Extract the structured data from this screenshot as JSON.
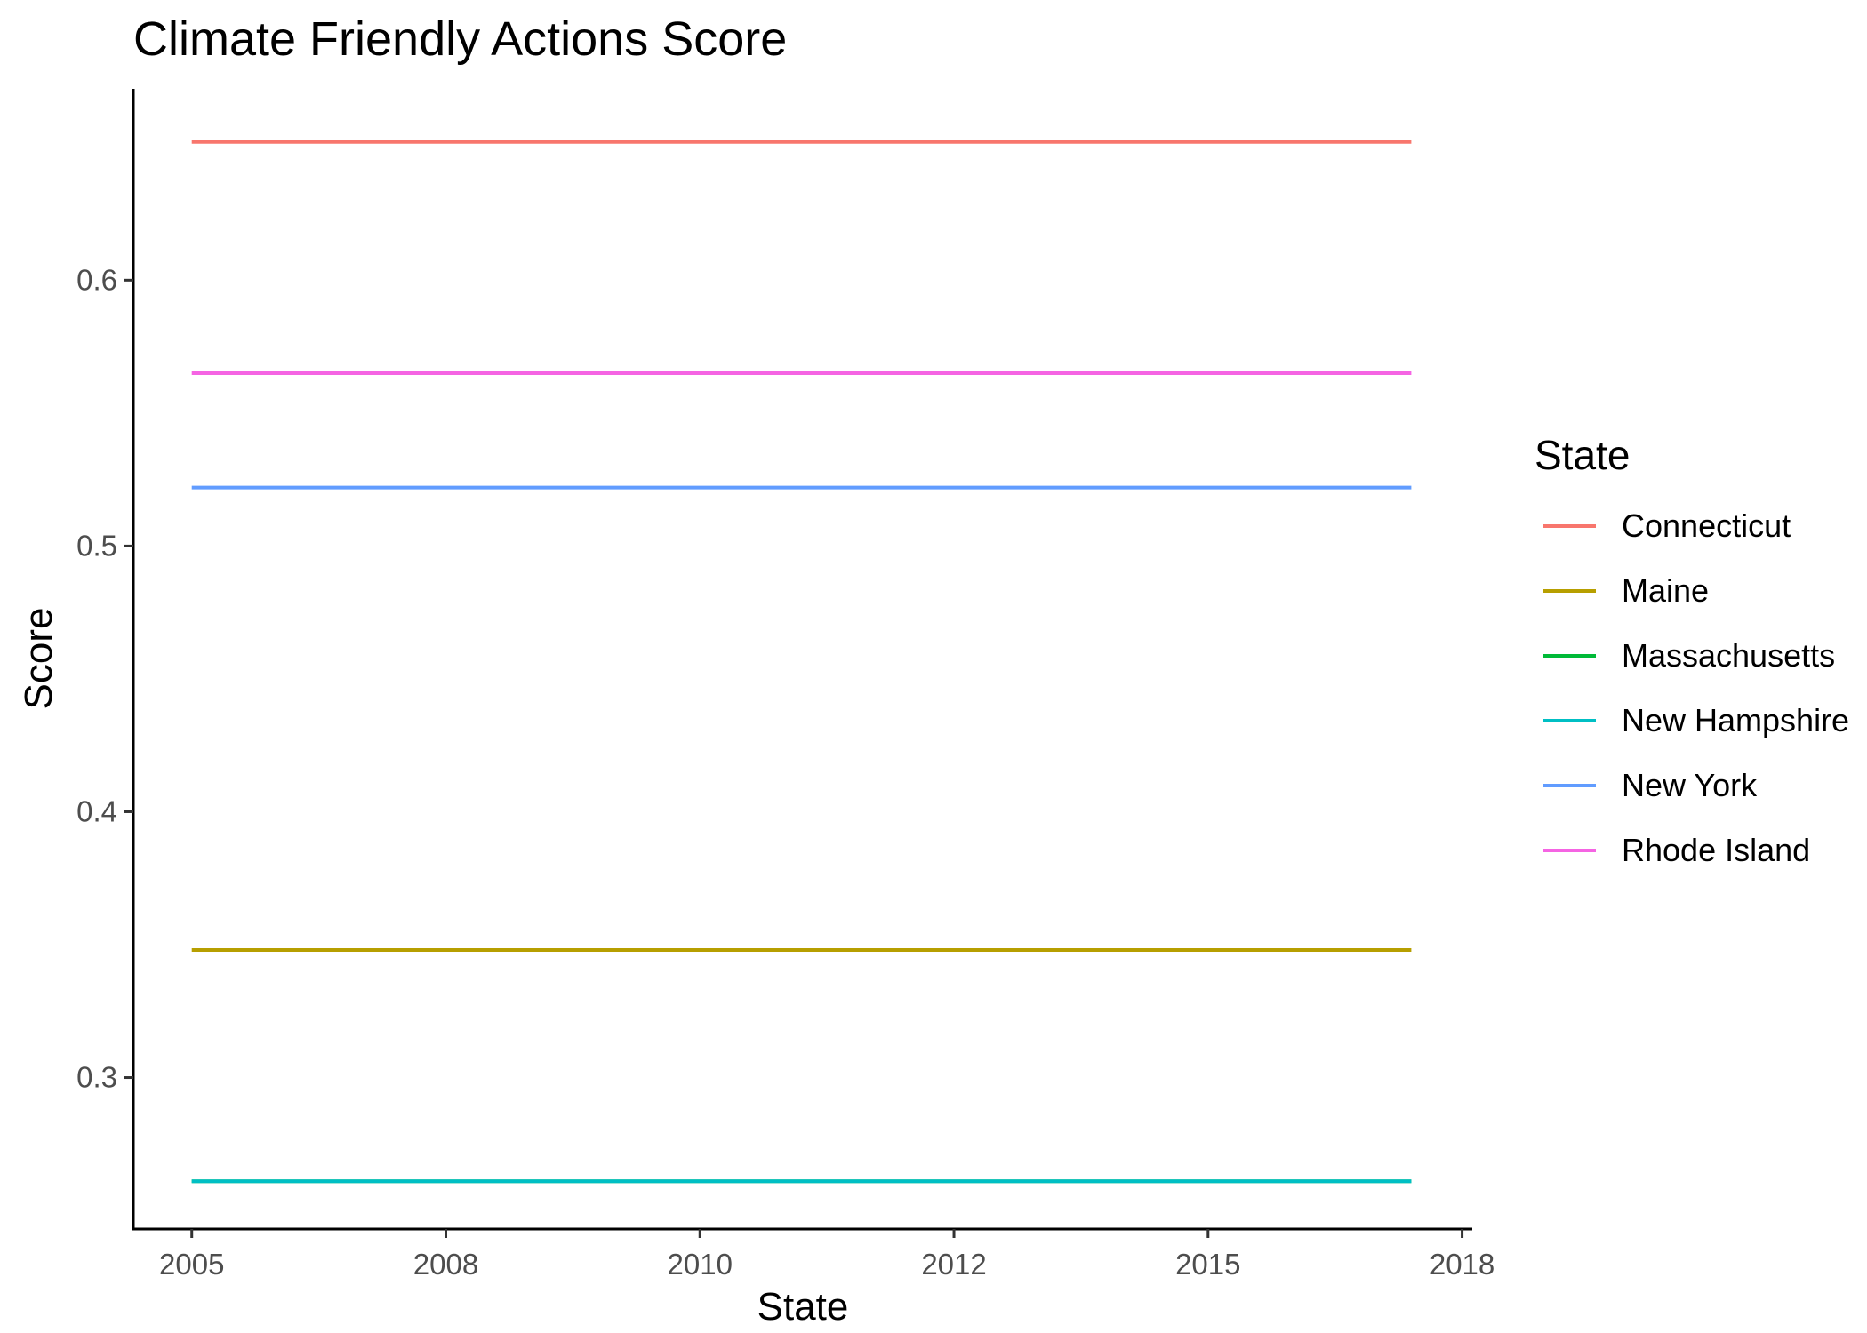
{
  "chart_data": {
    "type": "line",
    "title": "Climate Friendly Actions Score",
    "xlabel": "State",
    "ylabel": "Score",
    "x_ticks": [
      {
        "value": 0,
        "label": "2005"
      },
      {
        "value": 1,
        "label": "2008"
      },
      {
        "value": 2,
        "label": "2010"
      },
      {
        "value": 3,
        "label": "2012"
      },
      {
        "value": 4,
        "label": "2015"
      },
      {
        "value": 5,
        "label": "2018"
      }
    ],
    "xlim": [
      -0.23,
      5.04
    ],
    "ylim": [
      0.243,
      0.672
    ],
    "y_ticks": [
      0.3,
      0.4,
      0.5,
      0.6
    ],
    "y_tick_labels": [
      "0.3",
      "0.4",
      "0.5",
      "0.6"
    ],
    "x": [
      0,
      4.8
    ],
    "series": [
      {
        "name": "Connecticut",
        "color": "#F8766D",
        "values": [
          0.652,
          0.652
        ]
      },
      {
        "name": "Maine",
        "color": "#B79F00",
        "values": [
          0.348,
          0.348
        ]
      },
      {
        "name": "Massachusetts",
        "color": "#00BA38",
        "values": [
          0.261,
          0.261
        ]
      },
      {
        "name": "New Hampshire",
        "color": "#00BFC4",
        "values": [
          0.261,
          0.261
        ]
      },
      {
        "name": "New York",
        "color": "#619CFF",
        "values": [
          0.522,
          0.522
        ]
      },
      {
        "name": "Rhode Island",
        "color": "#F564E3",
        "values": [
          0.565,
          0.565
        ]
      }
    ],
    "legend": {
      "title": "State",
      "position": "right"
    },
    "grid": false
  }
}
